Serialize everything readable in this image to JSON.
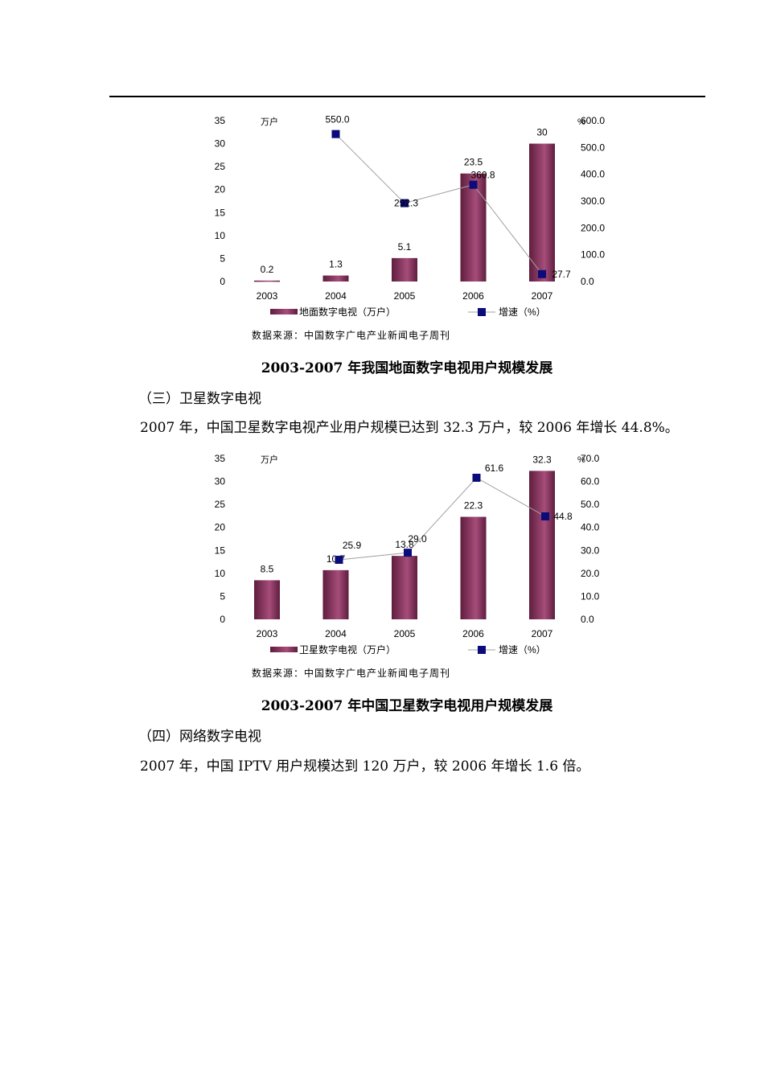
{
  "chart_data": [
    {
      "type": "bar",
      "categories": [
        "2003",
        "2004",
        "2005",
        "2006",
        "2007"
      ],
      "series": [
        {
          "name": "地面数字电视（万户）",
          "type": "bar",
          "axis": "left",
          "values": [
            0.2,
            1.3,
            5.1,
            23.5,
            30
          ]
        },
        {
          "name": "增速（%）",
          "type": "line",
          "axis": "right",
          "values": [
            null,
            550.0,
            292.3,
            360.8,
            27.7
          ]
        }
      ],
      "bar_labels": [
        "0.2",
        "1.3",
        "5.1",
        "23.5",
        "30"
      ],
      "line_labels": [
        "",
        "550.0",
        "292.3",
        "360.8",
        "27.7"
      ],
      "left_unit": "万户",
      "right_unit": "%",
      "ylim_left": [
        0,
        35
      ],
      "ylim_right": [
        0,
        600
      ],
      "left_ticks": [
        "0",
        "5",
        "10",
        "15",
        "20",
        "25",
        "30",
        "35"
      ],
      "right_ticks": [
        "0.0",
        "100.0",
        "200.0",
        "300.0",
        "400.0",
        "500.0",
        "600.0"
      ],
      "legend": [
        "地面数字电视（万户）",
        "增速（%）"
      ],
      "legend_position": "bottom",
      "grid": false
    },
    {
      "type": "bar",
      "categories": [
        "2003",
        "2004",
        "2005",
        "2006",
        "2007"
      ],
      "series": [
        {
          "name": "卫星数字电视（万户）",
          "type": "bar",
          "axis": "left",
          "values": [
            8.5,
            10.7,
            13.8,
            22.3,
            32.3
          ]
        },
        {
          "name": "增速（%）",
          "type": "line",
          "axis": "right",
          "values": [
            null,
            25.9,
            29.0,
            61.6,
            44.8
          ]
        }
      ],
      "bar_labels": [
        "8.5",
        "10.7",
        "13.8",
        "22.3",
        "32.3"
      ],
      "line_labels": [
        "",
        "25.9",
        "29.0",
        "61.6",
        "44.8"
      ],
      "left_unit": "万户",
      "right_unit": "%",
      "ylim_left": [
        0,
        35
      ],
      "ylim_right": [
        0,
        70
      ],
      "left_ticks": [
        "0",
        "5",
        "10",
        "15",
        "20",
        "25",
        "30",
        "35"
      ],
      "right_ticks": [
        "0.0",
        "10.0",
        "20.0",
        "30.0",
        "40.0",
        "50.0",
        "60.0",
        "70.0"
      ],
      "legend": [
        "卫星数字电视（万户）",
        "增速（%）"
      ],
      "legend_position": "bottom",
      "grid": false
    }
  ],
  "doc": {
    "source1": "数据来源：中国数字广电产业新闻电子周刊",
    "caption1": "2003-2007 年我国地面数字电视用户规模发展",
    "heading1": "（三）卫星数字电视",
    "para1": "2007 年，中国卫星数字电视产业用户规模已达到 32.3 万户，较 2006 年增长 44.8%。",
    "source2": "数据来源：中国数字广电产业新闻电子周刊",
    "caption2": "2003-2007 年中国卫星数字电视用户规模发展",
    "heading2": "（四）网络数字电视",
    "para2": "2007 年，中国 IPTV 用户规模达到 120 万户，较 2006 年增长 1.6 倍。"
  },
  "colors": {
    "bar_dark": "#5e1d3d",
    "bar_light": "#a64d7a",
    "marker": "#0b0b7a",
    "line": "#a0a0a0"
  }
}
